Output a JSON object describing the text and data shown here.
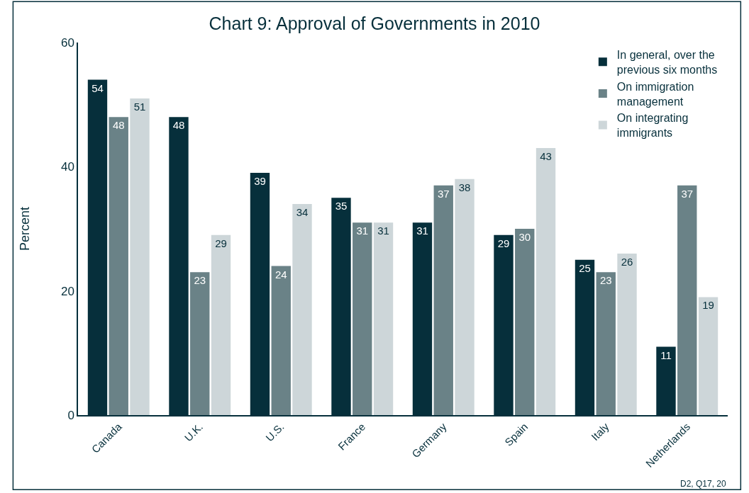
{
  "chart_data": {
    "type": "bar",
    "title": "Chart 9: Approval of Governments in 2010",
    "ylabel": "Percent",
    "categories": [
      "Canada",
      "U.K.",
      "U.S.",
      "France",
      "Germany",
      "Spain",
      "Italy",
      "Netherlands"
    ],
    "series": [
      {
        "name": "In general, over the previous six months",
        "color": "#062f3b",
        "values": [
          54,
          48,
          39,
          35,
          31,
          29,
          25,
          11
        ]
      },
      {
        "name": "On immigration management",
        "color": "#6a8287",
        "values": [
          48,
          23,
          24,
          31,
          37,
          30,
          23,
          37
        ]
      },
      {
        "name": "On integrating immigrants",
        "color": "#cdd6d9",
        "values": [
          51,
          29,
          34,
          31,
          38,
          43,
          26,
          19
        ]
      }
    ],
    "ylim": [
      0,
      60
    ],
    "yticks": [
      0,
      20,
      40,
      60
    ],
    "grid": false,
    "legend": "top right",
    "data_labels": true,
    "annotations": [
      "D2, Q17, 20"
    ]
  }
}
